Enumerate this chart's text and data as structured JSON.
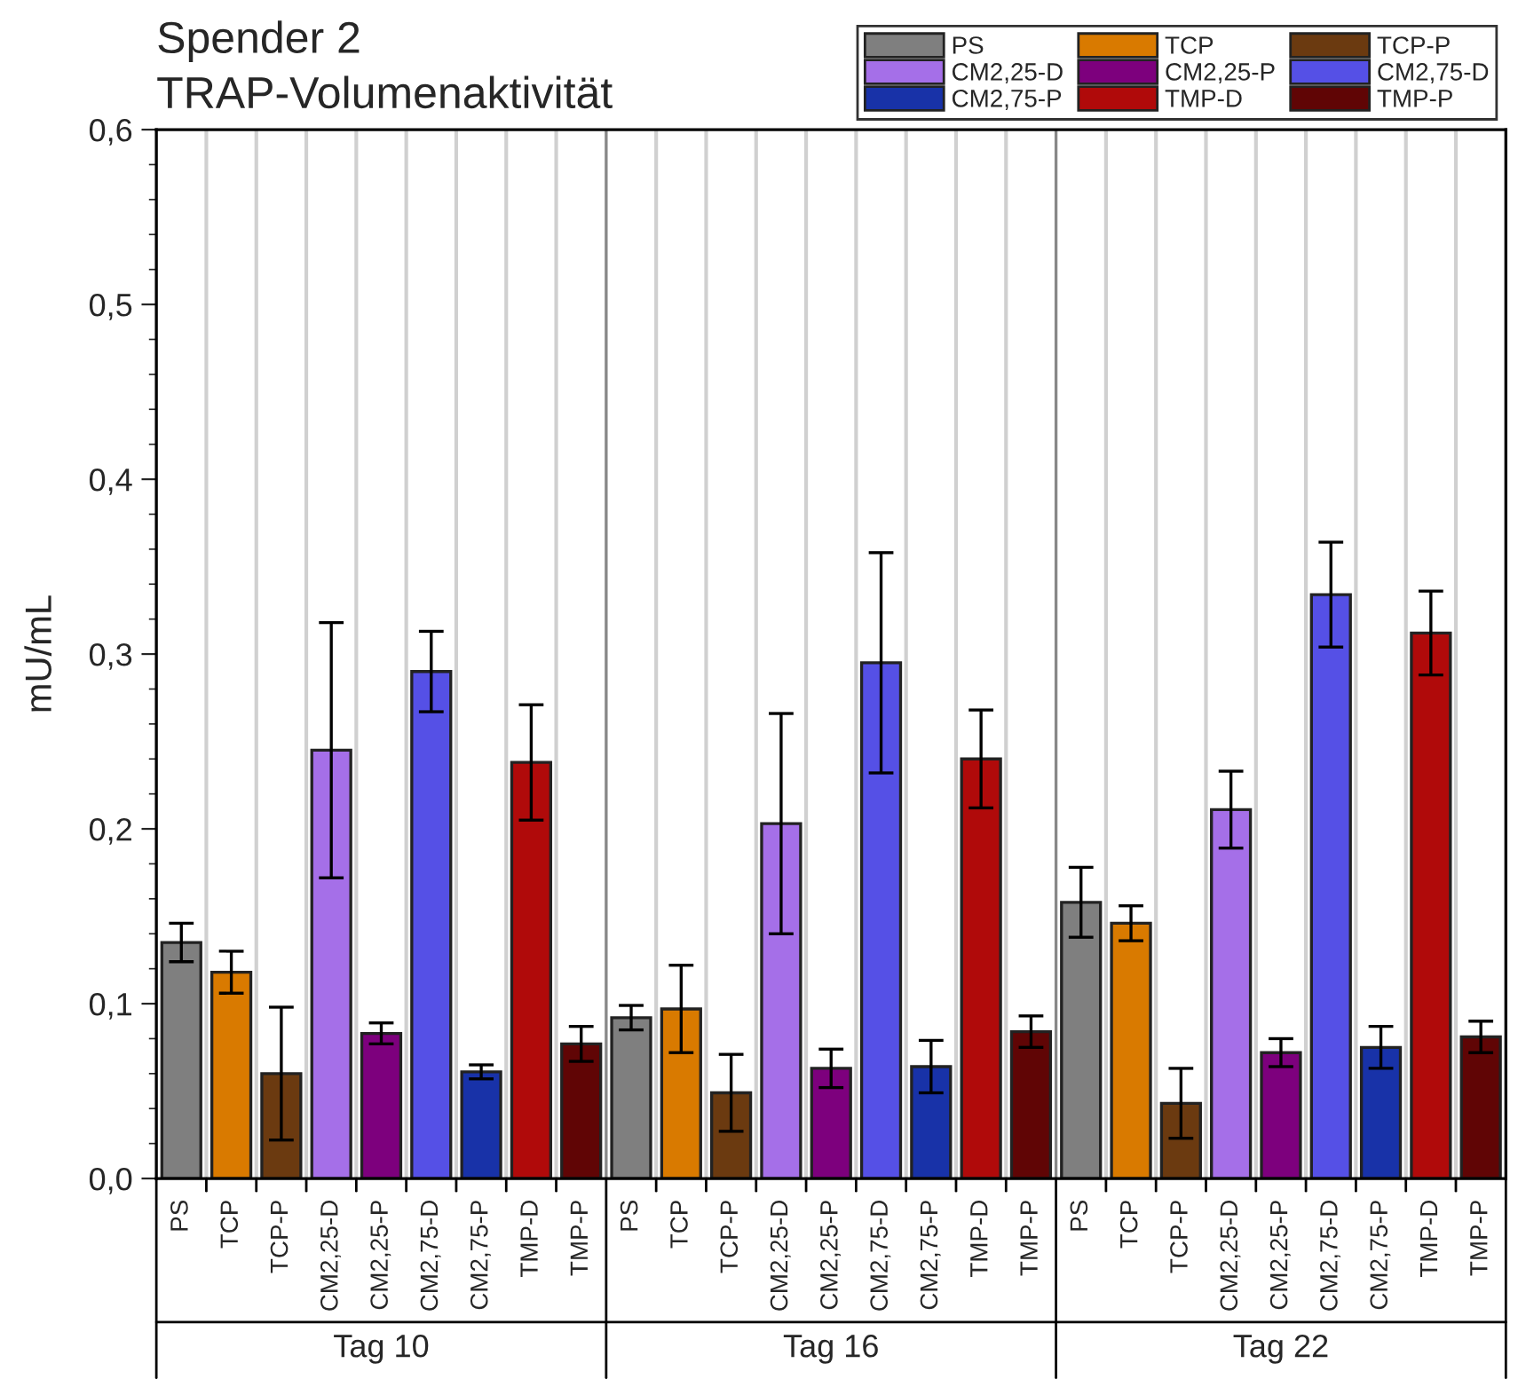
{
  "chart_data": {
    "type": "bar",
    "title": "Spender 2",
    "subtitle": "TRAP-Volumenaktivität",
    "ylabel": "mU/mL",
    "categories": [
      "Tag 10",
      "Tag 16",
      "Tag 22"
    ],
    "series": [
      {
        "name": "PS",
        "color": "#7f7f7f",
        "values": [
          0.135,
          0.092,
          0.158
        ],
        "errors": [
          0.011,
          0.007,
          0.02
        ]
      },
      {
        "name": "TCP",
        "color": "#d97a00",
        "values": [
          0.118,
          0.097,
          0.146
        ],
        "errors": [
          0.012,
          0.025,
          0.01
        ]
      },
      {
        "name": "TCP-P",
        "color": "#6b3a10",
        "values": [
          0.06,
          0.049,
          0.043
        ],
        "errors": [
          0.038,
          0.022,
          0.02
        ]
      },
      {
        "name": "CM2,25-D",
        "color": "#a56fe8",
        "values": [
          0.245,
          0.203,
          0.211
        ],
        "errors": [
          0.073,
          0.063,
          0.022
        ]
      },
      {
        "name": "CM2,25-P",
        "color": "#7d007d",
        "values": [
          0.083,
          0.063,
          0.072
        ],
        "errors": [
          0.006,
          0.011,
          0.008
        ]
      },
      {
        "name": "CM2,75-D",
        "color": "#5550e6",
        "values": [
          0.29,
          0.295,
          0.334
        ],
        "errors": [
          0.023,
          0.063,
          0.03
        ]
      },
      {
        "name": "CM2,75-P",
        "color": "#1832a8",
        "values": [
          0.061,
          0.064,
          0.075
        ],
        "errors": [
          0.004,
          0.015,
          0.012
        ]
      },
      {
        "name": "TMP-D",
        "color": "#b00a0a",
        "values": [
          0.238,
          0.24,
          0.312
        ],
        "errors": [
          0.033,
          0.028,
          0.024
        ]
      },
      {
        "name": "TMP-P",
        "color": "#600505",
        "values": [
          0.077,
          0.084,
          0.081
        ],
        "errors": [
          0.01,
          0.009,
          0.009
        ]
      }
    ],
    "ylim": [
      0,
      0.6
    ],
    "yticks": [
      {
        "value": 0,
        "label": "0,0"
      },
      {
        "value": 0.1,
        "label": "0,1"
      },
      {
        "value": 0.2,
        "label": "0,2"
      },
      {
        "value": 0.3,
        "label": "0,3"
      },
      {
        "value": 0.4,
        "label": "0,4"
      },
      {
        "value": 0.5,
        "label": "0,5"
      },
      {
        "value": 0.6,
        "label": "0,6"
      }
    ],
    "grid": "x",
    "legend": "top right"
  }
}
